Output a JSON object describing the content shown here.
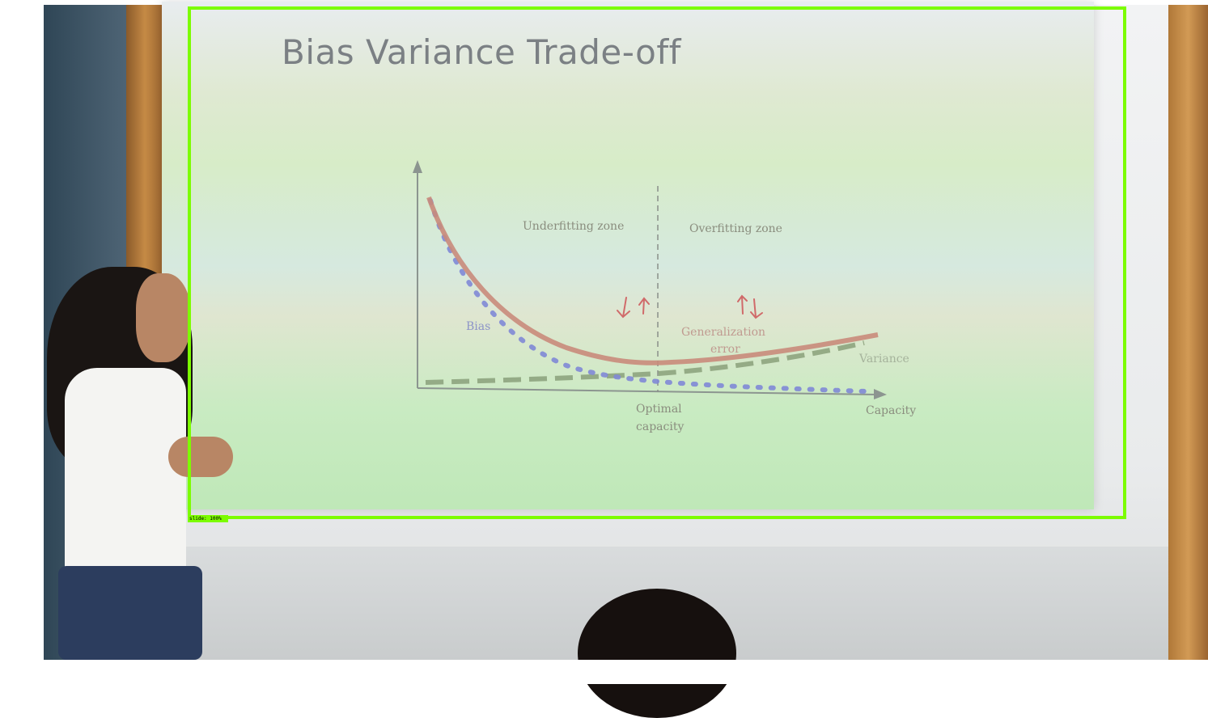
{
  "slide": {
    "title": "Bias Variance Trade-off",
    "labels": {
      "underfitting": "Underfitting zone",
      "overfitting": "Overfitting zone",
      "bias": "Bias",
      "generalization": "Generalization",
      "generalization2": "error",
      "variance": "Variance",
      "optimal": "Optimal",
      "optimal2": "capacity",
      "capacity": "Capacity"
    }
  },
  "detection": {
    "tag": "slide: 100%",
    "color": "#7cfc00"
  },
  "colors": {
    "total_curve": "#c98b7b",
    "bias_curve": "#7f88d6",
    "variance_curve": "#8aa07a",
    "arrows": "#d06a6a"
  }
}
